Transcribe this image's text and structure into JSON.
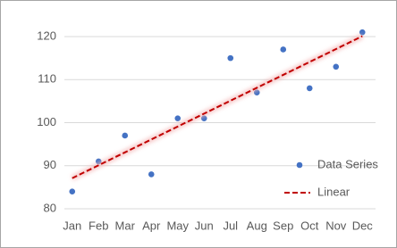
{
  "chart_data": {
    "type": "scatter",
    "categories": [
      "Jan",
      "Feb",
      "Mar",
      "Apr",
      "May",
      "Jun",
      "Jul",
      "Aug",
      "Sep",
      "Oct",
      "Nov",
      "Dec"
    ],
    "series": [
      {
        "name": "Data Series",
        "type": "scatter",
        "color": "#4472c4",
        "values": [
          84,
          91,
          97,
          88,
          101,
          101,
          115,
          107,
          117,
          108,
          113,
          121
        ]
      },
      {
        "name": "Linear",
        "type": "trendline",
        "color": "#c00000",
        "values": [
          87.1,
          90.1,
          93.1,
          96.1,
          99.1,
          102.1,
          105.1,
          108.1,
          111.1,
          114.1,
          117.1,
          120.1
        ]
      }
    ],
    "ylim": [
      80,
      120
    ],
    "yticks": [
      80,
      90,
      100,
      110,
      120
    ],
    "grid": true,
    "legend": "right"
  }
}
